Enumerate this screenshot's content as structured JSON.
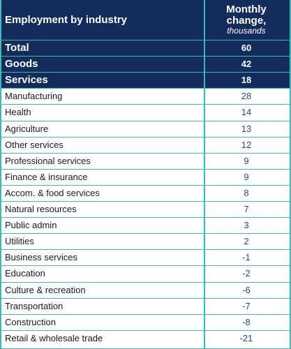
{
  "chart_data": {
    "type": "table",
    "header": {
      "industry": "Employment by industry",
      "change_line1": "Monthly",
      "change_line2": "change,",
      "change_unit": "thousands"
    },
    "rows": [
      {
        "label": "Total",
        "value": "60"
      },
      {
        "label": "Goods",
        "value": "42"
      },
      {
        "label": "Services",
        "value": "18"
      },
      {
        "label": "Manufacturing",
        "value": "28"
      },
      {
        "label": "Health",
        "value": "14"
      },
      {
        "label": "Agriculture",
        "value": "13"
      },
      {
        "label": "Other services",
        "value": "12"
      },
      {
        "label": "Professional services",
        "value": "9"
      },
      {
        "label": "Finance & insurance",
        "value": "9"
      },
      {
        "label": "Accom. & food services",
        "value": "8"
      },
      {
        "label": "Natural resources",
        "value": "7"
      },
      {
        "label": "Public admin",
        "value": "3"
      },
      {
        "label": "Utilities",
        "value": "2"
      },
      {
        "label": "Business services",
        "value": "-1"
      },
      {
        "label": "Education",
        "value": "-2"
      },
      {
        "label": "Culture & recreation",
        "value": "-6"
      },
      {
        "label": "Transportation",
        "value": "-7"
      },
      {
        "label": "Construction",
        "value": "-8"
      },
      {
        "label": "Retail & wholesale trade",
        "value": "-21"
      }
    ],
    "highlight_color": "#142c5c",
    "line_color": "#3fb8b8"
  }
}
